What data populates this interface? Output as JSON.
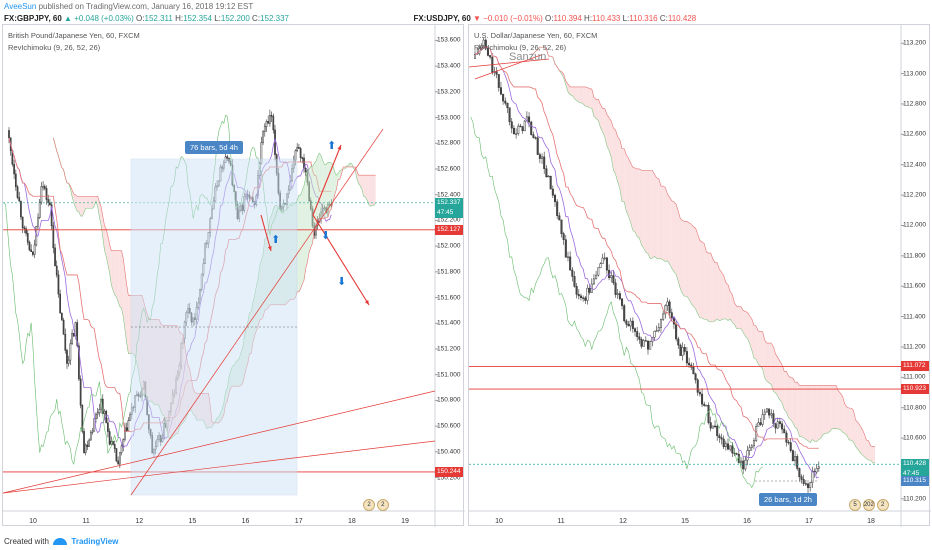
{
  "header": {
    "author": "AveeSun",
    "published": "published on TradingView.com, January 16, 2018 19:12 EST"
  },
  "legend_left": {
    "symbol": "FX:GBPJPY, 60",
    "close_value": "152.337",
    "change": "+0.048 (+0.03%)",
    "open_label": "O:",
    "open": "152.311",
    "high_label": "H:",
    "high": "152.354",
    "low_label": "L:",
    "low": "152.200",
    "close_label": "C:",
    "close": "152.337"
  },
  "legend_right": {
    "symbol": "FX:USDJPY, 60",
    "close_value": "110.428",
    "change": "−0.010 (−0.01%)",
    "open_label": "O:",
    "open": "110.394",
    "high_label": "H:",
    "high": "110.433",
    "low_label": "L:",
    "low": "110.316",
    "close_label": "C:",
    "close": "110.428"
  },
  "footer": {
    "created_with": "Created with",
    "brand": "TradingView"
  },
  "colors": {
    "bull": "#26a69a",
    "bear": "#ef5350",
    "candle": "#4a4a4a",
    "accent": "#2196f3",
    "cloud_bull": "#c8e6c9",
    "cloud_bear": "#f8c9c9",
    "range_box": "#cfe3f7",
    "price_line": "#26a69a",
    "red_line": "#e53935"
  },
  "chart_data": [
    {
      "type": "candlestick",
      "title": "British Pound/Japanese Yen, 60, FXCM",
      "indicator_label": "RevIchimoku (9, 26, 52, 26)",
      "ylim": [
        149.94,
        153.72
      ],
      "y_ticks": [
        "150.200",
        "150.400",
        "150.600",
        "150.800",
        "151.000",
        "151.200",
        "151.400",
        "151.600",
        "151.800",
        "152.000",
        "152.200",
        "152.400",
        "152.600",
        "152.800",
        "153.000",
        "153.200",
        "153.400",
        "153.600"
      ],
      "x_ticks": [
        "10",
        "11",
        "12",
        "15",
        "16",
        "17",
        "18",
        "19"
      ],
      "current_price": "152.337",
      "countdown": "47:45",
      "horizontal_lines": [
        "152.127",
        "150.244"
      ],
      "annotation": "76 bars, 5d 4h",
      "calendar_counts": [
        "2",
        "2"
      ],
      "close_path": [
        152.9,
        152.5,
        152.1,
        151.9,
        152.5,
        152.3,
        151.6,
        151.1,
        151.4,
        150.4,
        150.6,
        150.8,
        150.5,
        150.3,
        150.6,
        150.8,
        150.9,
        150.4,
        150.5,
        150.7,
        151.0,
        151.5,
        151.4,
        151.9,
        152.3,
        152.6,
        152.7,
        152.2,
        152.4,
        152.3,
        152.9,
        153.0,
        152.3,
        152.4,
        152.8,
        152.6,
        152.1,
        152.3,
        152.3
      ]
    },
    {
      "type": "candlestick",
      "title": "U.S. Dollar/Japanese Yen, 60, FXCM",
      "indicator_label": "RevIchimoku (9, 26, 52, 26)",
      "watermark": "Sanzun",
      "ylim": [
        110.12,
        113.32
      ],
      "y_ticks": [
        "110.200",
        "110.400",
        "110.600",
        "110.800",
        "111.000",
        "111.200",
        "111.400",
        "111.600",
        "111.800",
        "112.000",
        "112.200",
        "112.400",
        "112.600",
        "112.800",
        "113.000",
        "113.200"
      ],
      "x_ticks": [
        "10",
        "11",
        "12",
        "15",
        "16",
        "17",
        "18"
      ],
      "current_price": "110.428",
      "countdown": "47:45",
      "low_tag": "110.315",
      "horizontal_lines": [
        "111.072",
        "110.923"
      ],
      "annotation": "26 bars, 1d 2h",
      "calendar_counts": [
        "5",
        "202",
        "2"
      ],
      "close_path": [
        113.1,
        113.2,
        113.0,
        112.8,
        112.6,
        112.7,
        112.5,
        112.3,
        112.0,
        111.7,
        111.5,
        111.6,
        111.8,
        111.6,
        111.4,
        111.3,
        111.2,
        111.3,
        111.5,
        111.2,
        111.1,
        110.9,
        110.7,
        110.6,
        110.5,
        110.4,
        110.6,
        110.8,
        110.7,
        110.6,
        110.4,
        110.3,
        110.43
      ]
    }
  ]
}
